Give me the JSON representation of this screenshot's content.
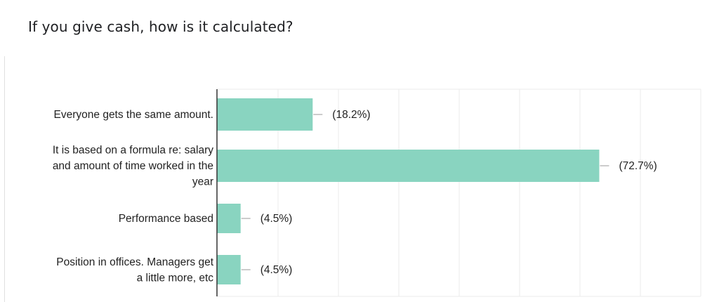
{
  "question": {
    "title": "If you give cash, how is it calculated?"
  },
  "chart_data": {
    "type": "bar",
    "orientation": "horizontal",
    "categories": [
      [
        "Everyone gets the same amount."
      ],
      [
        "It is based on a formula re: salary",
        "and amount of time worked in the",
        "year"
      ],
      [
        "Performance based"
      ],
      [
        "Position in offices. Managers get",
        "a little more, etc"
      ]
    ],
    "values": [
      18.2,
      72.7,
      4.5,
      4.5
    ],
    "value_labels": [
      "(18.2%)",
      "(72.7%)",
      "(4.5%)",
      "(4.5%)"
    ],
    "xlim": [
      0,
      92
    ],
    "grid": true,
    "legend": "none",
    "colors": {
      "bar": "#89d4c0",
      "grid": "#ebebeb",
      "axis": "#333333",
      "leader": "#999999"
    }
  }
}
